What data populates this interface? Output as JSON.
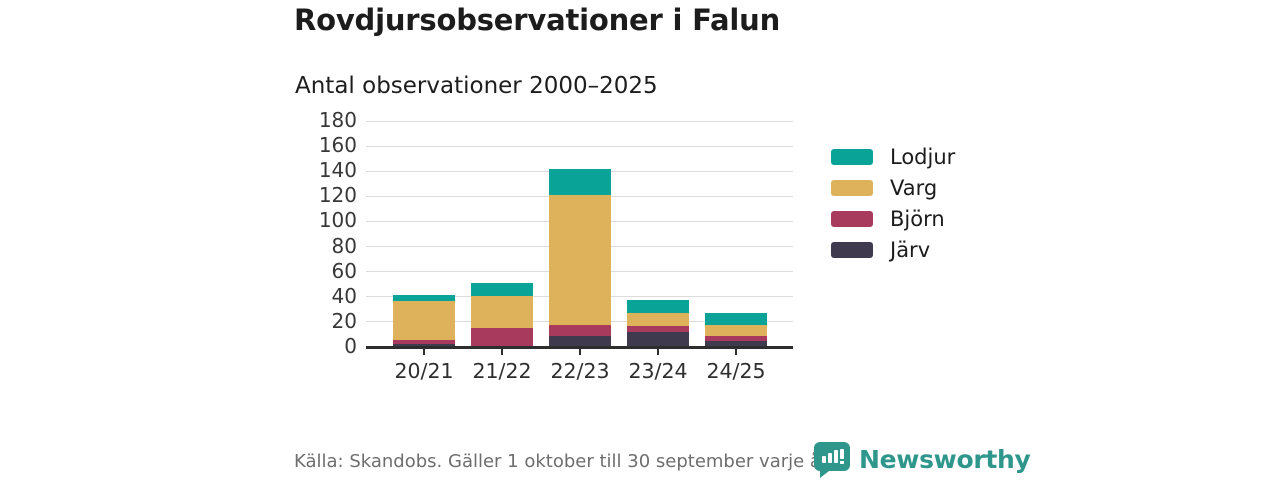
{
  "header": {
    "title": "Rovdjursobservationer i Falun",
    "subtitle": "Antal observationer 2000–2025"
  },
  "chart_data": {
    "type": "bar",
    "stacked": true,
    "title": "Rovdjursobservationer i Falun",
    "subtitle": "Antal observationer 2000–2025",
    "categories": [
      "20/21",
      "21/22",
      "22/23",
      "23/24",
      "24/25"
    ],
    "series": [
      {
        "name": "Järv",
        "color": "#3f3a4d",
        "values": [
          2,
          0,
          8,
          11,
          4
        ]
      },
      {
        "name": "Björn",
        "color": "#a83a5e",
        "values": [
          3,
          14,
          9,
          5,
          4
        ]
      },
      {
        "name": "Varg",
        "color": "#ddb25a",
        "values": [
          31,
          26,
          103,
          10,
          9
        ]
      },
      {
        "name": "Lodjur",
        "color": "#0aa398",
        "values": [
          5,
          10,
          21,
          11,
          9
        ]
      }
    ],
    "totals": [
      41,
      50,
      141,
      37,
      26
    ],
    "ylim": [
      0,
      180
    ],
    "ytick_step": 20,
    "grid": true,
    "legend_position": "right",
    "legend_order": [
      "Lodjur",
      "Varg",
      "Björn",
      "Järv"
    ]
  },
  "legend": {
    "items": [
      {
        "label": "Lodjur",
        "color": "#0aa398"
      },
      {
        "label": "Varg",
        "color": "#ddb25a"
      },
      {
        "label": "Björn",
        "color": "#a83a5e"
      },
      {
        "label": "Järv",
        "color": "#3f3a4d"
      }
    ]
  },
  "footer": {
    "source": "Källa: Skandobs. Gäller 1 oktober till 30 september varje år.",
    "brand": "Newsworthy"
  },
  "colors": {
    "accent_teal": "#0aa398",
    "gold": "#ddb25a",
    "maroon": "#a83a5e",
    "dark_slate": "#3f3a4d",
    "brand_teal": "#2f968c",
    "gridline": "#dcdcdc",
    "axis": "#2e2e2e",
    "text_dark": "#1c1c1c",
    "text_gray": "#6e6e6e"
  }
}
